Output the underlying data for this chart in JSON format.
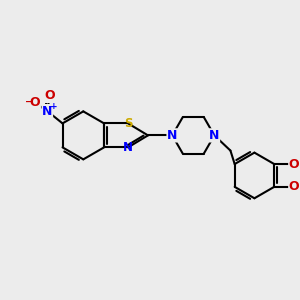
{
  "bg_color": "#ececec",
  "bond_color": "#000000",
  "bond_width": 1.5,
  "atom_colors": {
    "S": "#ccaa00",
    "N": "#0000ff",
    "O": "#cc0000",
    "C": "#000000"
  },
  "font_size": 8.5,
  "fig_size": [
    3.0,
    3.0
  ],
  "dpi": 100,
  "xlim": [
    0,
    10
  ],
  "ylim": [
    0,
    10
  ]
}
